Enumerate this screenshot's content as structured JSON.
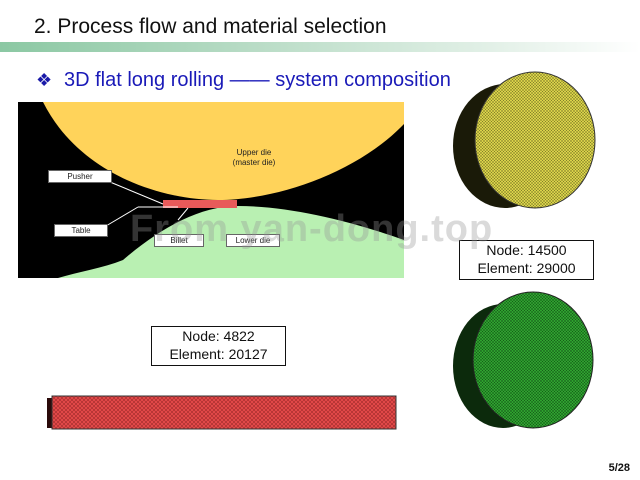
{
  "slide": {
    "title": "2. Process flow and material selection",
    "subtitle": "3D flat long rolling —— system composition",
    "bullet_icon": "diamond-bullet-icon",
    "page_number": "5/28"
  },
  "diagram": {
    "labels": {
      "upper_die": "Upper die",
      "upper_die_note": "(master die)",
      "pusher": "Pusher",
      "table": "Table",
      "billet": "Billet",
      "lower_die": "Lower die"
    },
    "colors": {
      "background": "#000000",
      "upper_die": "#ffd35a",
      "lower_die": "#b9f0b2",
      "billet": "#e85a5a"
    }
  },
  "meshes": {
    "upper_die_mesh": {
      "node_label": "Node: 14500",
      "element_label": "Element: 29000",
      "color": "#d9d24a"
    },
    "lower_die_mesh": {
      "color": "#2fa12f"
    },
    "billet_mesh": {
      "node_label": "Node: 4822",
      "element_label": "Element: 20127",
      "color": "#e04848"
    }
  },
  "watermark": "From yan-dong.top"
}
